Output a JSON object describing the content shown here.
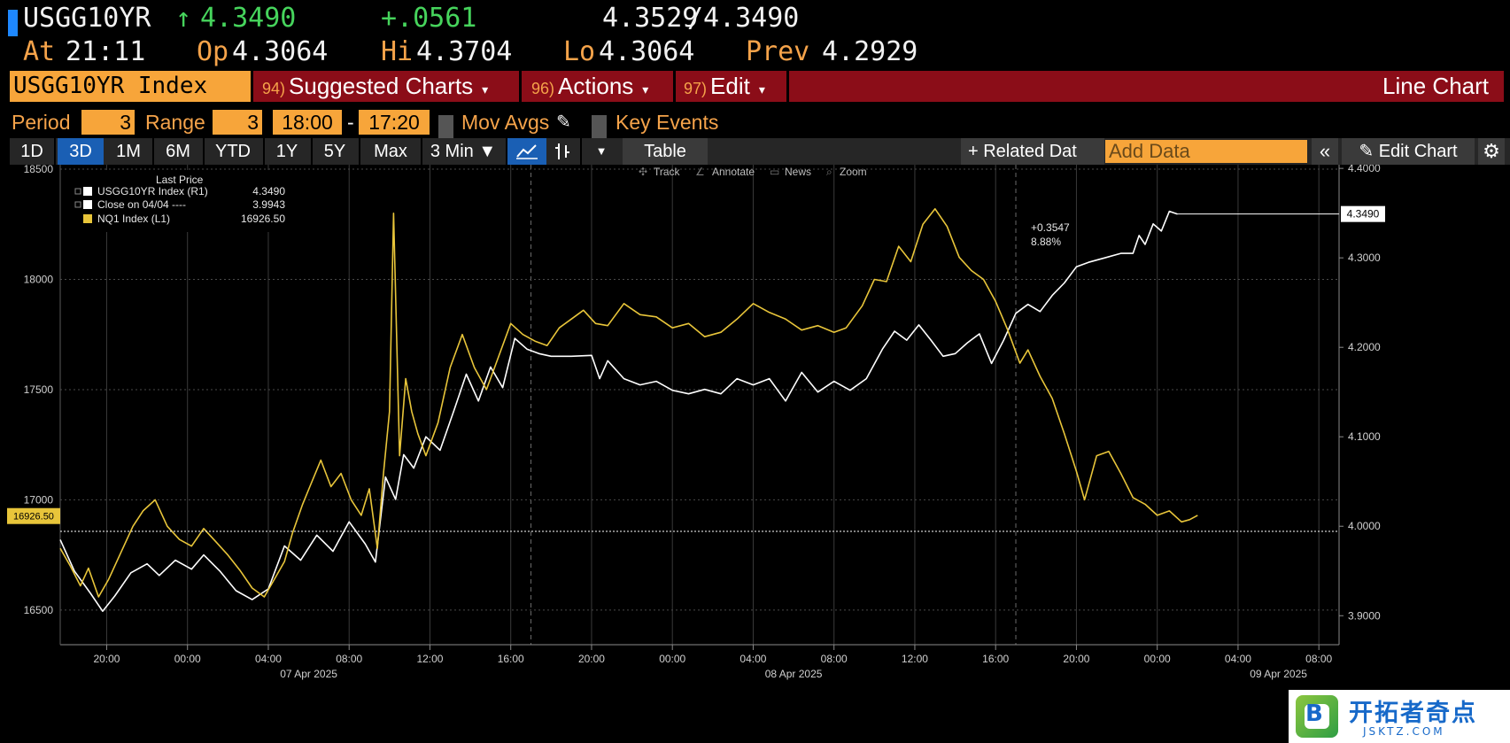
{
  "quote": {
    "ticker": "USGG10YR",
    "arrow": "↑",
    "last": "4.3490",
    "change": "+.0561",
    "bid": "4.3529",
    "slash": "/",
    "ask": "4.3490",
    "at_label": "At",
    "at_value": "21:11",
    "open_label": "Op",
    "open_value": "4.3064",
    "high_label": "Hi",
    "high_value": "4.3704",
    "low_label": "Lo",
    "low_value": "4.3064",
    "prev_label": "Prev",
    "prev_value": "4.2929"
  },
  "command_bar": {
    "security": "USGG10YR Index",
    "menus": [
      {
        "num": "94)",
        "label": "Suggested Charts",
        "dd": "▾"
      },
      {
        "num": "96)",
        "label": "Actions",
        "dd": "▾"
      },
      {
        "num": "97)",
        "label": "Edit",
        "dd": "▾"
      }
    ],
    "title": "Line Chart"
  },
  "period_row": {
    "period_label": "Period",
    "period_value": "3",
    "range_label": "Range",
    "range_value": "3",
    "time_from": "18:00",
    "dash": "-",
    "time_to": "17:20",
    "mov_avgs": "Mov Avgs",
    "key_events": "Key Events"
  },
  "toolbar": {
    "ranges": [
      "1D",
      "3D",
      "1M",
      "6M",
      "YTD",
      "1Y",
      "5Y",
      "Max"
    ],
    "active_range": "3D",
    "interval": "3 Min ▼",
    "table": "Table",
    "related": "+ Related Dat",
    "add_data_placeholder": "Add Data",
    "collapse": "«",
    "edit_chart": "Edit Chart"
  },
  "chart_tools": {
    "track": "Track",
    "annotate": "Annotate",
    "news": "News",
    "zoom": "Zoom"
  },
  "legend": {
    "title": "Last Price",
    "rows": [
      {
        "label": "USGG10YR Index  (R1)",
        "value": "4.3490",
        "color": "#ffffff"
      },
      {
        "label": "Close on 04/04  ----",
        "value": "3.9943",
        "color": "#ffffff"
      },
      {
        "label": "NQ1 Index  (L1)",
        "value": "16926.50",
        "color": "#e8c53a"
      }
    ]
  },
  "annotations": {
    "change_abs": "+0.3547",
    "change_pct": "8.88%",
    "right_last_tag": "4.3490",
    "left_last_tag": "16926.50"
  },
  "colors": {
    "yield_line": "#ffffff",
    "nq_line": "#e8c53a",
    "accent_orange": "#f7a53a",
    "menu_red": "#8b0d18",
    "active_blue": "#1a5fb4"
  },
  "watermark": {
    "logo_letter": "B",
    "cn_text": "开拓者奇点",
    "url": "JSKTZ.COM"
  },
  "chart_data": {
    "type": "line",
    "title": "",
    "x_ticks": [
      "20:00",
      "00:00",
      "04:00",
      "08:00",
      "12:00",
      "16:00",
      "20:00",
      "00:00",
      "04:00",
      "08:00",
      "12:00",
      "16:00",
      "20:00",
      "00:00",
      "04:00",
      "08:00"
    ],
    "x_tick_hours": [
      -4,
      0,
      4,
      8,
      12,
      16,
      20,
      24,
      28,
      32,
      36,
      40,
      44,
      48,
      52,
      56
    ],
    "date_labels": [
      "07 Apr 2025",
      "08 Apr 2025",
      "09 Apr 2025"
    ],
    "date_label_hours": [
      6,
      30,
      54
    ],
    "x_range_hours": [
      -6.3,
      57
    ],
    "session_breaks_hours": [
      17,
      41
    ],
    "x_unit": "hours since 07 Apr 2025 00:00",
    "left_axis": {
      "ticks": [
        16500,
        17000,
        17500,
        18000,
        18500
      ],
      "ylim": [
        16343,
        18520
      ]
    },
    "right_axis": {
      "ticks": [
        "3.9000",
        "4.0000",
        "4.1000",
        "4.2000",
        "4.3000",
        "4.4000"
      ],
      "ylim": [
        3.8676,
        4.4041
      ]
    },
    "reference_line": {
      "name": "Close on 04/04",
      "value": 3.9943,
      "axis": "right"
    },
    "series": [
      {
        "name": "USGG10YR Index",
        "axis": "right",
        "color": "#ffffff",
        "points": [
          [
            -6.3,
            3.985
          ],
          [
            -5.6,
            3.95
          ],
          [
            -4.8,
            3.925
          ],
          [
            -4.2,
            3.905
          ],
          [
            -3.6,
            3.922
          ],
          [
            -2.8,
            3.948
          ],
          [
            -2.0,
            3.958
          ],
          [
            -1.4,
            3.945
          ],
          [
            -0.6,
            3.962
          ],
          [
            0.2,
            3.952
          ],
          [
            0.8,
            3.968
          ],
          [
            1.6,
            3.95
          ],
          [
            2.4,
            3.928
          ],
          [
            3.2,
            3.918
          ],
          [
            4.0,
            3.93
          ],
          [
            4.8,
            3.978
          ],
          [
            5.6,
            3.962
          ],
          [
            6.4,
            3.99
          ],
          [
            7.2,
            3.972
          ],
          [
            8.0,
            4.005
          ],
          [
            8.8,
            3.98
          ],
          [
            9.3,
            3.96
          ],
          [
            9.8,
            4.055
          ],
          [
            10.3,
            4.03
          ],
          [
            10.7,
            4.08
          ],
          [
            11.2,
            4.065
          ],
          [
            11.8,
            4.1
          ],
          [
            12.5,
            4.085
          ],
          [
            13.2,
            4.13
          ],
          [
            13.8,
            4.17
          ],
          [
            14.4,
            4.14
          ],
          [
            15.0,
            4.178
          ],
          [
            15.6,
            4.155
          ],
          [
            16.2,
            4.21
          ],
          [
            16.8,
            4.198
          ],
          [
            17.4,
            4.193
          ],
          [
            18.0,
            4.19
          ],
          [
            19.0,
            4.19
          ],
          [
            20.0,
            4.191
          ],
          [
            20.4,
            4.165
          ],
          [
            20.8,
            4.185
          ],
          [
            21.6,
            4.165
          ],
          [
            22.4,
            4.158
          ],
          [
            23.2,
            4.162
          ],
          [
            24.0,
            4.152
          ],
          [
            24.8,
            4.148
          ],
          [
            25.6,
            4.153
          ],
          [
            26.4,
            4.148
          ],
          [
            27.2,
            4.165
          ],
          [
            28.0,
            4.158
          ],
          [
            28.8,
            4.165
          ],
          [
            29.6,
            4.14
          ],
          [
            30.4,
            4.172
          ],
          [
            31.2,
            4.15
          ],
          [
            32.0,
            4.162
          ],
          [
            32.8,
            4.152
          ],
          [
            33.6,
            4.165
          ],
          [
            34.4,
            4.198
          ],
          [
            35.0,
            4.218
          ],
          [
            35.6,
            4.208
          ],
          [
            36.2,
            4.225
          ],
          [
            36.8,
            4.208
          ],
          [
            37.4,
            4.19
          ],
          [
            38.0,
            4.193
          ],
          [
            38.6,
            4.205
          ],
          [
            39.2,
            4.215
          ],
          [
            39.8,
            4.182
          ],
          [
            40.4,
            4.208
          ],
          [
            41.0,
            4.238
          ],
          [
            41.6,
            4.248
          ],
          [
            42.2,
            4.24
          ],
          [
            42.8,
            4.258
          ],
          [
            43.4,
            4.272
          ],
          [
            44.0,
            4.29
          ],
          [
            44.6,
            4.295
          ],
          [
            45.4,
            4.3
          ],
          [
            46.2,
            4.305
          ],
          [
            46.8,
            4.305
          ],
          [
            47.1,
            4.325
          ],
          [
            47.4,
            4.315
          ],
          [
            47.8,
            4.338
          ],
          [
            48.2,
            4.33
          ],
          [
            48.6,
            4.352
          ],
          [
            49.0,
            4.349
          ]
        ]
      },
      {
        "name": "NQ1 Index",
        "axis": "left",
        "color": "#e8c53a",
        "points": [
          [
            -6.3,
            16780
          ],
          [
            -5.8,
            16700
          ],
          [
            -5.3,
            16610
          ],
          [
            -4.9,
            16690
          ],
          [
            -4.4,
            16560
          ],
          [
            -3.9,
            16640
          ],
          [
            -3.3,
            16760
          ],
          [
            -2.7,
            16880
          ],
          [
            -2.2,
            16950
          ],
          [
            -1.6,
            17000
          ],
          [
            -1.0,
            16880
          ],
          [
            -0.4,
            16820
          ],
          [
            0.2,
            16790
          ],
          [
            0.8,
            16870
          ],
          [
            1.4,
            16810
          ],
          [
            2.0,
            16750
          ],
          [
            2.6,
            16680
          ],
          [
            3.2,
            16600
          ],
          [
            3.8,
            16560
          ],
          [
            4.3,
            16640
          ],
          [
            4.8,
            16720
          ],
          [
            5.2,
            16850
          ],
          [
            5.7,
            16980
          ],
          [
            6.1,
            17070
          ],
          [
            6.6,
            17180
          ],
          [
            7.1,
            17060
          ],
          [
            7.6,
            17120
          ],
          [
            8.1,
            17000
          ],
          [
            8.6,
            16930
          ],
          [
            9.0,
            17050
          ],
          [
            9.4,
            16780
          ],
          [
            9.7,
            17120
          ],
          [
            10.0,
            17400
          ],
          [
            10.2,
            18300
          ],
          [
            10.5,
            17200
          ],
          [
            10.8,
            17550
          ],
          [
            11.1,
            17400
          ],
          [
            11.4,
            17300
          ],
          [
            11.8,
            17200
          ],
          [
            12.4,
            17350
          ],
          [
            13.0,
            17600
          ],
          [
            13.6,
            17750
          ],
          [
            14.2,
            17600
          ],
          [
            14.8,
            17500
          ],
          [
            15.4,
            17650
          ],
          [
            16.0,
            17800
          ],
          [
            16.6,
            17750
          ],
          [
            17.2,
            17720
          ],
          [
            17.8,
            17700
          ],
          [
            18.4,
            17780
          ],
          [
            19.0,
            17820
          ],
          [
            19.6,
            17860
          ],
          [
            20.2,
            17800
          ],
          [
            20.8,
            17790
          ],
          [
            21.6,
            17890
          ],
          [
            22.4,
            17840
          ],
          [
            23.2,
            17830
          ],
          [
            24.0,
            17780
          ],
          [
            24.8,
            17800
          ],
          [
            25.6,
            17740
          ],
          [
            26.4,
            17760
          ],
          [
            27.2,
            17820
          ],
          [
            28.0,
            17890
          ],
          [
            28.8,
            17850
          ],
          [
            29.6,
            17820
          ],
          [
            30.4,
            17770
          ],
          [
            31.2,
            17790
          ],
          [
            32.0,
            17760
          ],
          [
            32.6,
            17780
          ],
          [
            33.4,
            17880
          ],
          [
            34.0,
            18000
          ],
          [
            34.6,
            17990
          ],
          [
            35.2,
            18150
          ],
          [
            35.8,
            18080
          ],
          [
            36.4,
            18250
          ],
          [
            37.0,
            18320
          ],
          [
            37.6,
            18240
          ],
          [
            38.2,
            18100
          ],
          [
            38.8,
            18040
          ],
          [
            39.4,
            18000
          ],
          [
            40.0,
            17900
          ],
          [
            40.6,
            17770
          ],
          [
            41.2,
            17620
          ],
          [
            41.6,
            17680
          ],
          [
            42.2,
            17560
          ],
          [
            42.8,
            17460
          ],
          [
            43.4,
            17300
          ],
          [
            44.0,
            17130
          ],
          [
            44.4,
            17000
          ],
          [
            45.0,
            17200
          ],
          [
            45.6,
            17220
          ],
          [
            46.2,
            17120
          ],
          [
            46.8,
            17010
          ],
          [
            47.4,
            16980
          ],
          [
            48.0,
            16930
          ],
          [
            48.6,
            16950
          ],
          [
            49.2,
            16900
          ],
          [
            49.6,
            16910
          ],
          [
            50.0,
            16930
          ]
        ]
      }
    ]
  }
}
